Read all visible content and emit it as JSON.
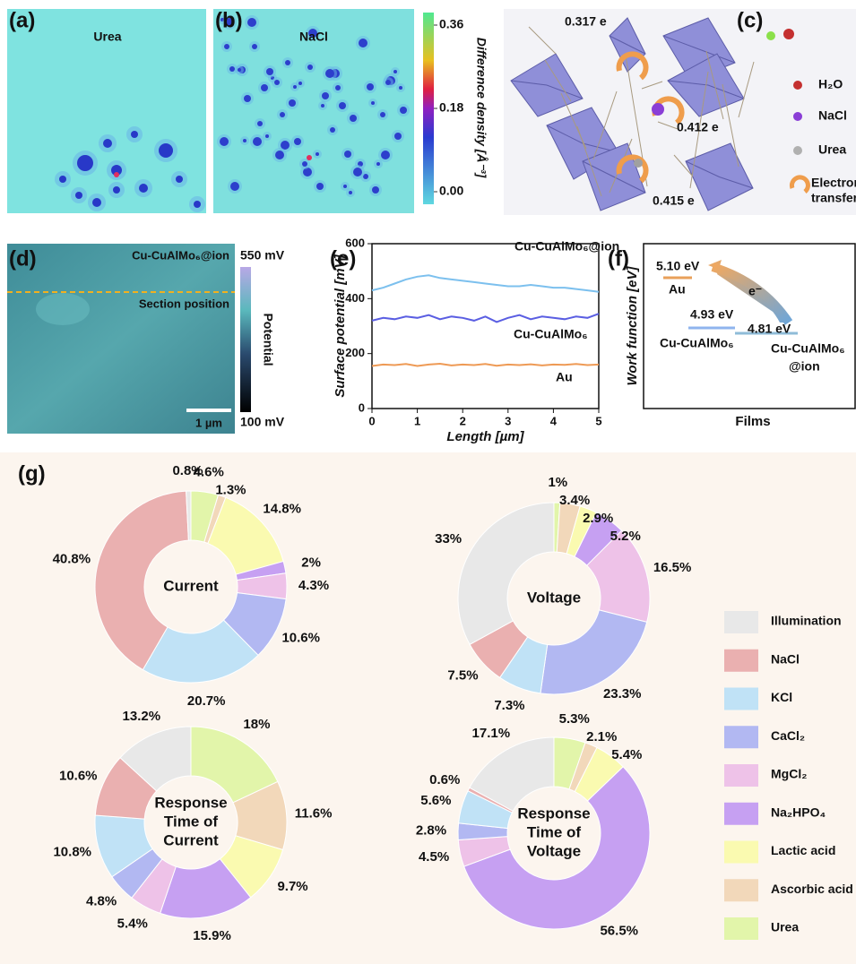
{
  "panels": {
    "a": {
      "label": "(a)",
      "title": "Urea"
    },
    "b": {
      "label": "(b)",
      "title": "NaCl"
    },
    "colorbar_ab": {
      "label": "Difference density [Å⁻³]",
      "ticks": [
        0.36,
        0.18,
        {
          "value": 0,
          "label": "0.00"
        }
      ]
    },
    "c": {
      "label": "(c)",
      "charges": [
        "0.317 e",
        "0.412 e",
        "0.415 e"
      ],
      "legend": [
        "H₂O",
        "NaCl",
        "Urea"
      ],
      "transfer": [
        "Electron",
        "transfer"
      ]
    },
    "d": {
      "label": "(d)",
      "title": "Cu-CuAlMo₆@ion",
      "section": "Section position",
      "scalebar": "1 µm",
      "colorbar_label": "Potential",
      "colorbar_max": "550 mV",
      "colorbar_min": "100 mV"
    },
    "e": {
      "label": "(e)"
    },
    "f": {
      "label": "(f)",
      "ylabel": "Work function [eV]",
      "xlabel": "Films",
      "au_value": "5.10 eV",
      "au": "Au",
      "base_value": "4.93 eV",
      "base": "Cu-CuAlMo₆",
      "ion_value": "4.81 eV",
      "ion": [
        "Cu-CuAlMo₆",
        "@ion"
      ],
      "electron": "e⁻"
    },
    "g": {
      "label": "(g)"
    }
  },
  "pie_legend": {
    "categories": [
      "Illumination",
      "NaCl",
      "KCl",
      "CaCl₂",
      "MgCl₂",
      "Na₂HPO₄",
      "Lactic acid",
      "Ascorbic acid",
      "Urea"
    ],
    "colors": [
      "#e8e8e8",
      "#eab0b0",
      "#c0e2f6",
      "#b2b8f2",
      "#eec2e8",
      "#c6a0f2",
      "#fafab0",
      "#f2d8ba",
      "#e2f5aa"
    ]
  },
  "chart_data": [
    {
      "type": "line",
      "xlabel": "Length [µm]",
      "ylabel": "Surface potential [mV]",
      "x": [
        0,
        0.25,
        0.5,
        0.75,
        1,
        1.25,
        1.5,
        1.75,
        2,
        2.25,
        2.5,
        2.75,
        3,
        3.25,
        3.5,
        3.75,
        4,
        4.25,
        4.5,
        4.75,
        5
      ],
      "xlim": [
        0,
        5
      ],
      "xticks": [
        0,
        1,
        2,
        3,
        4,
        5
      ],
      "ylim": [
        0,
        600
      ],
      "yticks": [
        0,
        200,
        400,
        600
      ],
      "series": [
        {
          "name": "Cu-CuAlMo₆@ion",
          "color": "#7cc0ee",
          "values": [
            430,
            440,
            455,
            470,
            480,
            485,
            475,
            470,
            465,
            460,
            455,
            450,
            445,
            445,
            450,
            445,
            440,
            440,
            435,
            430,
            425
          ]
        },
        {
          "name": "Cu-CuAlMo₆",
          "color": "#5a5ee2",
          "values": [
            320,
            330,
            325,
            335,
            330,
            340,
            325,
            335,
            330,
            320,
            335,
            315,
            330,
            340,
            325,
            335,
            330,
            325,
            335,
            330,
            345
          ]
        },
        {
          "name": "Au",
          "color": "#ee9a55",
          "values": [
            155,
            160,
            158,
            162,
            155,
            160,
            163,
            157,
            160,
            158,
            162,
            156,
            160,
            158,
            161,
            157,
            160,
            159,
            162,
            158,
            160
          ]
        }
      ]
    },
    {
      "type": "pie",
      "title": [
        "Current"
      ],
      "values": [
        0.8,
        40.8,
        20.7,
        10.6,
        4.3,
        2,
        14.8,
        1.3,
        4.6
      ],
      "value_labels": [
        "0.8%",
        "40.8%",
        "20.7%",
        "10.6%",
        "4.3%",
        "2%",
        "14.8%",
        "1.3%",
        "4.6%"
      ]
    },
    {
      "type": "pie",
      "title": [
        "Voltage"
      ],
      "values": [
        33,
        7.5,
        7.3,
        23.3,
        16.5,
        5.2,
        2.9,
        3.4,
        1
      ],
      "value_labels": [
        "33%",
        "7.5%",
        "7.3%",
        "23.3%",
        "16.5%",
        "5.2%",
        "2.9%",
        "3.4%",
        "1%"
      ]
    },
    {
      "type": "pie",
      "title": [
        "Response",
        "Time of",
        "Current"
      ],
      "values": [
        13.2,
        10.6,
        10.8,
        4.8,
        5.4,
        15.9,
        9.7,
        11.6,
        18
      ],
      "value_labels": [
        "13.2%",
        "10.6%",
        "10.8%",
        "4.8%",
        "5.4%",
        "15.9%",
        "9.7%",
        "11.6%",
        "18%"
      ]
    },
    {
      "type": "pie",
      "title": [
        "Response",
        "Time of",
        "Voltage"
      ],
      "values": [
        17.1,
        0.6,
        5.6,
        2.8,
        4.5,
        56.5,
        5.4,
        2.1,
        5.3
      ],
      "value_labels": [
        "17.1%",
        "0.6%",
        "5.6%",
        "2.8%",
        "4.5%",
        "56.5%",
        "5.4%",
        "2.1%",
        "5.3%"
      ]
    }
  ]
}
